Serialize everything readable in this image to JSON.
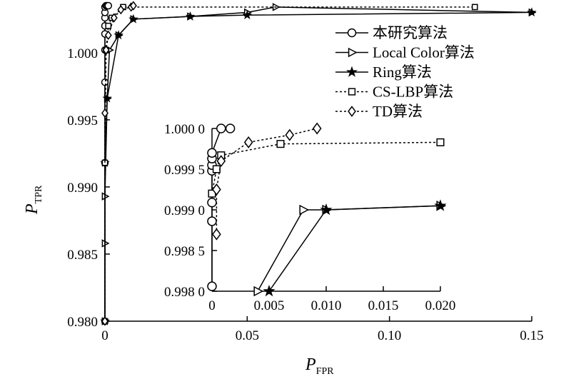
{
  "chart_data": {
    "type": "line",
    "xlabel": "P",
    "xlabel_sub": "FPR",
    "ylabel": "P",
    "ylabel_sub": "TPR",
    "xlim": [
      0,
      0.15
    ],
    "ylim": [
      0.98,
      1.0035
    ],
    "x_ticks": [
      0,
      0.05,
      0.1,
      0.15
    ],
    "x_tick_labels": [
      "0",
      "0.05",
      "0.10",
      "0.15"
    ],
    "y_ticks": [
      0.98,
      0.985,
      0.99,
      0.995,
      1.0
    ],
    "y_tick_labels": [
      "0.980",
      "0.985",
      "0.990",
      "0.995",
      "1.000"
    ],
    "legend": {
      "placement": "top-right"
    },
    "series": [
      {
        "name": "本研究算法",
        "style": "solid",
        "marker": "circle",
        "x": [
          0,
          0,
          0,
          0,
          0,
          0,
          0,
          0,
          0,
          0.0004,
          0.0008,
          0.0012
        ],
        "y": [
          0.98,
          0.9918,
          0.9978,
          1.0002,
          1.0014,
          1.002,
          1.0026,
          1.003,
          1.0034,
          1.0035,
          1.0035,
          1.0035
        ]
      },
      {
        "name": "Local Color算法",
        "style": "solid",
        "marker": "triangle-right",
        "x": [
          0,
          0,
          0,
          0.0008,
          0.0016,
          0.0048,
          0.01,
          0.03,
          0.05,
          0.06,
          0.15
        ],
        "y": [
          0.98,
          0.9858,
          0.9893,
          0.9966,
          1.0002,
          1.0013,
          1.0025,
          1.0027,
          1.003,
          1.0034,
          1.003
        ]
      },
      {
        "name": "Ring算法",
        "style": "solid",
        "marker": "star",
        "x": [
          0,
          0,
          0.0008,
          0.0048,
          0.01,
          0.03,
          0.05,
          0.15
        ],
        "y": [
          0.98,
          0.9918,
          0.9966,
          1.0013,
          1.0025,
          1.0027,
          1.0028,
          1.003
        ]
      },
      {
        "name": "CS-LBP算法",
        "style": "dotted",
        "marker": "square",
        "x": [
          0,
          0,
          0.0004,
          0.0012,
          0.0024,
          0.0064,
          0.13
        ],
        "y": [
          0.98,
          0.9918,
          1.0002,
          1.002,
          1.0026,
          1.0034,
          1.0034
        ]
      },
      {
        "name": "TD算法",
        "style": "dotted",
        "marker": "diamond",
        "x": [
          0,
          0,
          0.0004,
          0.0012,
          0.0032,
          0.0056,
          0.0092,
          0.01
        ],
        "y": [
          0.98,
          0.9955,
          1.0002,
          1.0013,
          1.0026,
          1.0032,
          1.0034,
          1.0035
        ]
      }
    ],
    "inset": {
      "xlim": [
        0,
        0.02
      ],
      "ylim": [
        0.998,
        1.0
      ],
      "x_ticks": [
        0,
        0.005,
        0.01,
        0.015,
        0.02
      ],
      "x_tick_labels": [
        "0",
        "0.005",
        "0.010",
        "0.015",
        "0.020"
      ],
      "y_ticks": [
        0.998,
        0.9985,
        0.999,
        0.9995,
        1.0
      ],
      "y_tick_labels": [
        "0.998 0",
        "0.998 5",
        "0.999 0",
        "0.999 5",
        "1.000 0"
      ],
      "series": [
        {
          "name": "本研究算法",
          "style": "solid",
          "marker": "circle",
          "x": [
            0,
            0,
            0,
            0,
            0,
            0,
            0,
            0.0008,
            0.0016
          ],
          "y": [
            0.99806,
            0.99886,
            0.99909,
            0.99948,
            0.99955,
            0.99963,
            0.9997,
            1.0,
            1.0
          ]
        },
        {
          "name": "Local Color算法",
          "style": "solid",
          "marker": "triangle-right",
          "x": [
            0.004,
            0.008,
            0.01,
            0.02
          ],
          "y": [
            0.998,
            0.999,
            0.999,
            0.99905
          ]
        },
        {
          "name": "Ring算法",
          "style": "solid",
          "marker": "star",
          "x": [
            0.005,
            0.01,
            0.02
          ],
          "y": [
            0.998,
            0.999,
            0.99905
          ]
        },
        {
          "name": "CS-LBP算法",
          "style": "dotted",
          "marker": "square",
          "x": [
            0,
            0.0004,
            0.0008,
            0.006,
            0.02
          ],
          "y": [
            0.9992,
            0.9995,
            0.99967,
            0.99981,
            0.99983
          ]
        },
        {
          "name": "TD算法",
          "style": "dotted",
          "marker": "diamond",
          "x": [
            0.0004,
            0.0004,
            0.0008,
            0.0032,
            0.0068,
            0.0092
          ],
          "y": [
            0.9987,
            0.99925,
            0.9996,
            0.99983,
            0.99992,
            1.0
          ]
        }
      ]
    }
  }
}
